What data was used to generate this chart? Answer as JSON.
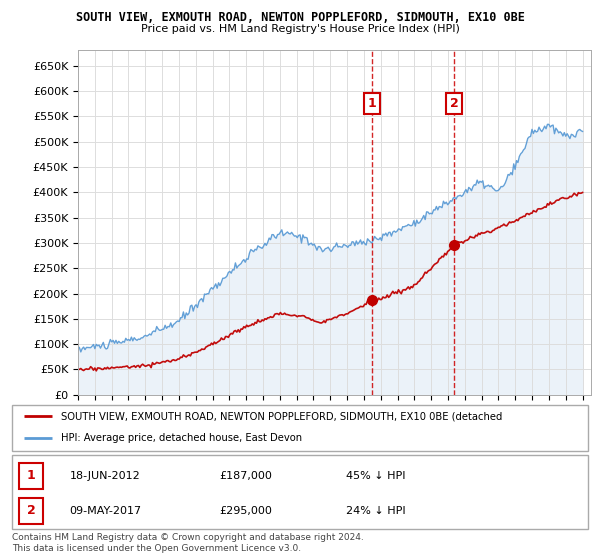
{
  "title": "SOUTH VIEW, EXMOUTH ROAD, NEWTON POPPLEFORD, SIDMOUTH, EX10 0BE",
  "subtitle": "Price paid vs. HM Land Registry's House Price Index (HPI)",
  "ylabel_ticks": [
    "£0",
    "£50K",
    "£100K",
    "£150K",
    "£200K",
    "£250K",
    "£300K",
    "£350K",
    "£400K",
    "£450K",
    "£500K",
    "£550K",
    "£600K",
    "£650K"
  ],
  "ytick_values": [
    0,
    50000,
    100000,
    150000,
    200000,
    250000,
    300000,
    350000,
    400000,
    450000,
    500000,
    550000,
    600000,
    650000
  ],
  "ylim": [
    0,
    680000
  ],
  "x_start_year": 1995,
  "x_end_year": 2025,
  "hpi_line_color": "#5b9bd5",
  "property_color": "#c00000",
  "sale1_date": 2012.46,
  "sale1_price": 187000,
  "sale2_date": 2017.36,
  "sale2_price": 295000,
  "annotation1_text": "1",
  "annotation2_text": "2",
  "legend_property": "SOUTH VIEW, EXMOUTH ROAD, NEWTON POPPLEFORD, SIDMOUTH, EX10 0BE (detached",
  "legend_hpi": "HPI: Average price, detached house, East Devon",
  "table_data": [
    {
      "num": "1",
      "date": "18-JUN-2012",
      "price": "£187,000",
      "note": "45% ↓ HPI"
    },
    {
      "num": "2",
      "date": "09-MAY-2017",
      "price": "£295,000",
      "note": "24% ↓ HPI"
    }
  ],
  "footer": "Contains HM Land Registry data © Crown copyright and database right 2024.\nThis data is licensed under the Open Government Licence v3.0.",
  "background_color": "#ffffff",
  "plot_bg_color": "#ffffff",
  "grid_color": "#dddddd",
  "shade_color": "#dce8f5",
  "hpi_xp": [
    1995,
    1997,
    1999,
    2001,
    2003,
    2005,
    2007,
    2008.5,
    2009.5,
    2011,
    2013,
    2015,
    2017,
    2019,
    2020,
    2021,
    2022,
    2023,
    2024,
    2025
  ],
  "hpi_yp": [
    90000,
    100000,
    115000,
    145000,
    210000,
    270000,
    320000,
    310000,
    285000,
    295000,
    310000,
    340000,
    380000,
    420000,
    400000,
    450000,
    520000,
    530000,
    510000,
    520000
  ],
  "prop_xp": [
    1995,
    1997,
    1999,
    2001,
    2003,
    2005,
    2007,
    2008.5,
    2009.5,
    2011,
    2012.46,
    2013,
    2015,
    2017.36,
    2018,
    2020,
    2022,
    2023,
    2024,
    2025
  ],
  "prop_yp": [
    50000,
    53000,
    58000,
    70000,
    100000,
    135000,
    160000,
    155000,
    143000,
    160000,
    187000,
    190000,
    215000,
    295000,
    305000,
    330000,
    360000,
    375000,
    390000,
    400000
  ]
}
